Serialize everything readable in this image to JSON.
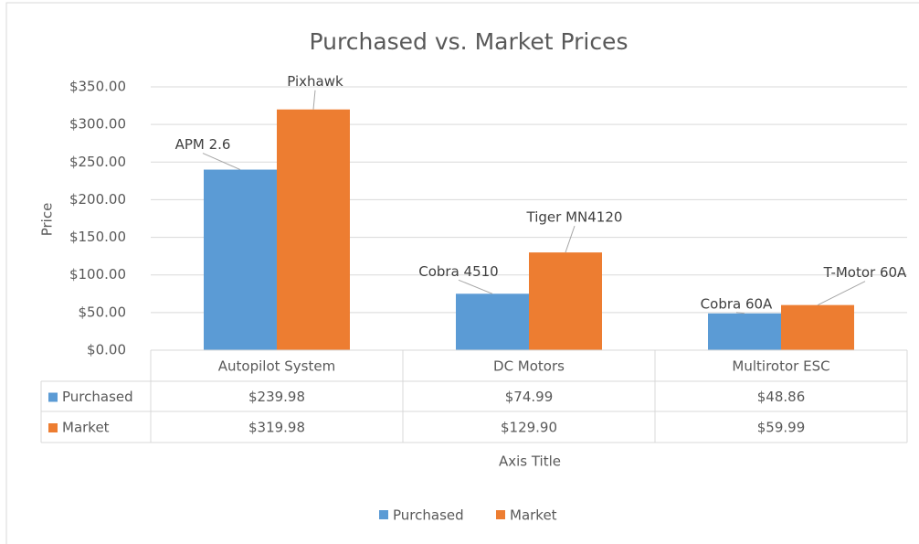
{
  "chart_data": {
    "type": "bar",
    "title": "Purchased vs. Market Prices",
    "y_label": "Price",
    "x_label": "Axis Title",
    "categories": [
      "Autopilot System",
      "DC Motors",
      "Multirotor ESC"
    ],
    "series": [
      {
        "name": "Purchased",
        "color": "#5b9bd5",
        "values": [
          239.98,
          74.99,
          48.86
        ],
        "value_labels": [
          "$239.98",
          "$74.99",
          "$48.86"
        ],
        "point_labels": [
          "APM 2.6",
          "Cobra 4510",
          "Cobra 60A"
        ]
      },
      {
        "name": "Market",
        "color": "#ed7d31",
        "values": [
          319.98,
          129.9,
          59.99
        ],
        "value_labels": [
          "$319.98",
          "$129.90",
          "$59.99"
        ],
        "point_labels": [
          "Pixhawk",
          "Tiger MN4120",
          "T-Motor 60A"
        ]
      }
    ],
    "ylim": [
      0,
      350
    ],
    "yticks": [
      {
        "value": 0,
        "label": "$0.00"
      },
      {
        "value": 50,
        "label": "$50.00"
      },
      {
        "value": 100,
        "label": "$100.00"
      },
      {
        "value": 150,
        "label": "$150.00"
      },
      {
        "value": 200,
        "label": "$200.00"
      },
      {
        "value": 250,
        "label": "$250.00"
      },
      {
        "value": 300,
        "label": "$300.00"
      },
      {
        "value": 350,
        "label": "$350.00"
      }
    ],
    "grid": true,
    "legend": "bottom"
  }
}
